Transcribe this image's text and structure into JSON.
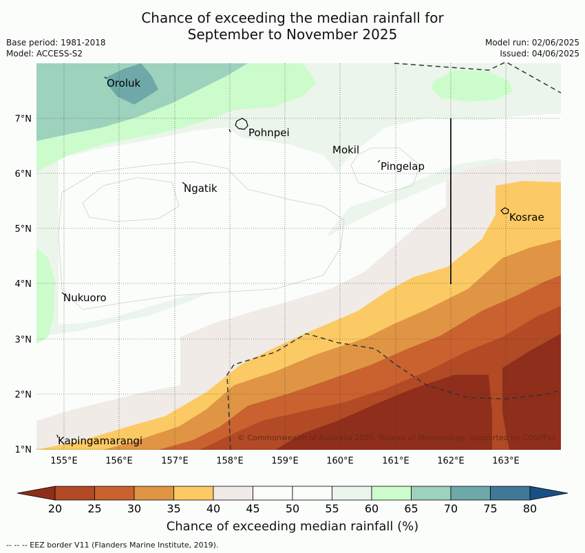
{
  "header": {
    "title_line1": "Chance of exceeding the median rainfall for",
    "title_line2": "September to November 2025",
    "base_period": "Base period: 1981-2018",
    "model": "Model: ACCESS-S2",
    "model_run": "Model run: 02/06/2025",
    "issued": "Issued: 04/06/2025"
  },
  "map": {
    "lon_ticks": [
      "155°E",
      "156°E",
      "157°E",
      "158°E",
      "159°E",
      "160°E",
      "161°E",
      "162°E",
      "163°E"
    ],
    "lat_ticks": [
      "7°N",
      "6°N",
      "5°N",
      "4°N",
      "3°N",
      "2°N",
      "1°N"
    ],
    "places": [
      "Oroluk",
      "Pohnpei",
      "Mokil",
      "Pingelap",
      "Ngatik",
      "Kosrae",
      "Nukuoro",
      "Kapingamarangi"
    ],
    "copyright": "© Commonwealth of Australia 2025, Bureau of Meteorology, supported by COSPPac"
  },
  "colorbar": {
    "ticks": [
      "20",
      "25",
      "30",
      "35",
      "40",
      "45",
      "50",
      "55",
      "60",
      "65",
      "70",
      "75",
      "80"
    ],
    "colors": [
      "#b24a25",
      "#c9622f",
      "#e09545",
      "#fcca64",
      "#f0ebe6",
      "#fbfdfb",
      "#fbfdfb",
      "#ebf5eb",
      "#ccfccc",
      "#9dd2bd",
      "#6ea8a8",
      "#417a98"
    ],
    "under_color": "#8f2e1b",
    "over_color": "#1a4f86",
    "label": "Chance of exceeding median rainfall (%)"
  },
  "footer": {
    "eez_note": "--  --  -- EEZ border V11 (Flanders Marine Institute, 2019)."
  }
}
